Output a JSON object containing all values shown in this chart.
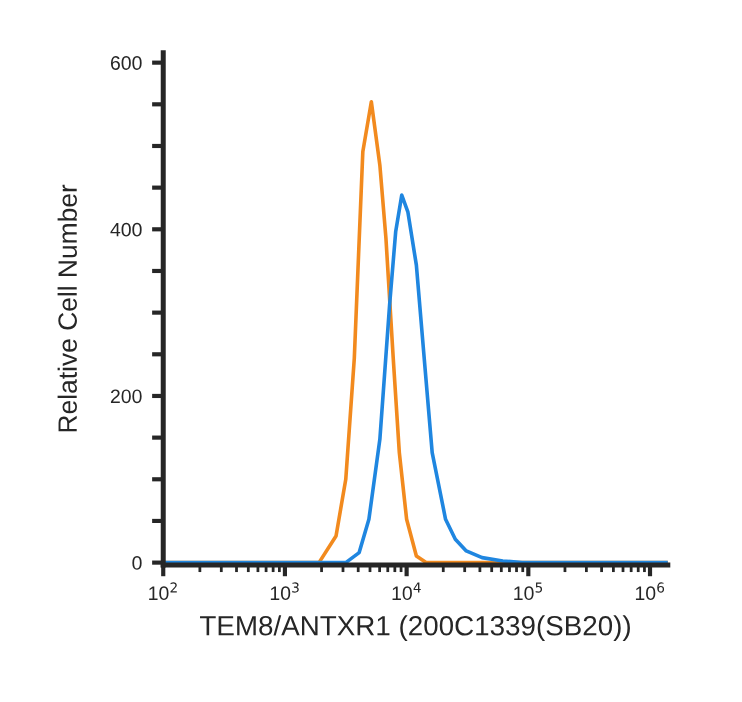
{
  "chart_data": {
    "type": "line",
    "xlabel": "TEM8/ANTXR1 (200C1339(SB20))",
    "ylabel": "Relative Cell Number",
    "log": "x",
    "grid": false,
    "legend": false,
    "marker": "none",
    "line_style": "solid",
    "xlim": [
      100,
      1400000
    ],
    "ylim": [
      -3,
      612
    ],
    "xticks": [
      {
        "value": 100,
        "label": "10$^{2}$"
      },
      {
        "value": 1000,
        "label": "10$^{3}$"
      },
      {
        "value": 10000,
        "label": "10$^{4}$"
      },
      {
        "value": 100000,
        "label": "10$^{5}$"
      },
      {
        "value": 1000000,
        "label": "10$^{6}$"
      }
    ],
    "yticks": [
      0,
      {
        "value": 50,
        "label": null
      },
      {
        "value": 100,
        "label": null
      },
      {
        "value": 150,
        "label": null
      },
      200,
      {
        "value": 250,
        "label": null
      },
      {
        "value": 300,
        "label": null
      },
      {
        "value": 350,
        "label": null
      },
      400,
      {
        "value": 450,
        "label": null
      },
      {
        "value": 500,
        "label": null
      },
      {
        "value": 550,
        "label": null
      },
      600
    ],
    "series": [
      {
        "color": "#f28a1e",
        "x": [
          100,
          1905,
          2630,
          3162,
          3715,
          4365,
          5129,
          6026,
          6761,
          7762,
          8710,
          10000,
          12023,
          14454,
          1400000
        ],
        "values": [
          0,
          0,
          32,
          100,
          245,
          493,
          553,
          477,
          389,
          245,
          132,
          52,
          8,
          0,
          0
        ]
      },
      {
        "color": "#1f86e0",
        "x": [
          100,
          3162,
          4074,
          4898,
          6026,
          7244,
          8128,
          9120,
          10233,
          12023,
          13804,
          16218,
          20893,
          25119,
          30903,
          41687,
          61660,
          89125,
          1400000
        ],
        "values": [
          0,
          0,
          12,
          52,
          148,
          309,
          397,
          441,
          421,
          357,
          253,
          132,
          52,
          28,
          14,
          6,
          2,
          0,
          0
        ]
      }
    ]
  }
}
